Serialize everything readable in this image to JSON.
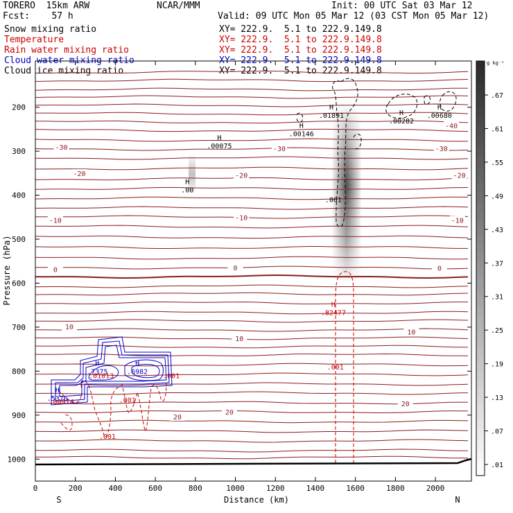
{
  "header": {
    "title": "TORERO  15km ARW",
    "org": "NCAR/MMM",
    "init": "Init: 00 UTC Sat 03 Mar 12",
    "fcst": "Fcst:    57 h",
    "valid": "Valid: 09 UTC Mon 05 Mar 12 (03 CST Mon 05 Mar 12)"
  },
  "fields": [
    {
      "name": "Snow mixing ratio",
      "xy": "XY= 222.9.  5.1 to 222.9.149.8",
      "color": "#000000"
    },
    {
      "name": "Temperature",
      "xy": "XY= 222.9.  5.1 to 222.9.149.8",
      "color": "#cc0000"
    },
    {
      "name": "Rain water mixing ratio",
      "xy": "XY= 222.9.  5.1 to 222.9.149.8",
      "color": "#cc0000"
    },
    {
      "name": "Cloud water mixing ratio",
      "xy": "XY= 222.9.  5.1 to 222.9.149.8",
      "color": "#0000cc"
    },
    {
      "name": "Cloud ice mixing ratio",
      "xy": "XY= 222.9.  5.1 to 222.9.149.8",
      "color": "#000000"
    }
  ],
  "chart_data": {
    "type": "contour cross-section",
    "xlabel": "Distance (km)",
    "ylabel": "Pressure (hPa)",
    "xlim": [
      0,
      2180
    ],
    "ylim": [
      1050,
      95
    ],
    "xticks": [
      "0",
      "200",
      "400",
      "600",
      "800",
      "1000",
      "1200",
      "1400",
      "1600",
      "1800",
      "2000"
    ],
    "yticks": [
      "200",
      "300",
      "400",
      "500",
      "600",
      "700",
      "800",
      "900",
      "1000"
    ],
    "x_end_labels": {
      "left": "S",
      "right": "N"
    },
    "colorbar": {
      "unit": "g kg⁻¹",
      "ticks": [
        ".01",
        ".07",
        ".13",
        ".19",
        ".25",
        ".31",
        ".37",
        ".43",
        ".49",
        ".55",
        ".61",
        ".67"
      ]
    },
    "temperature_labels": [
      {
        "text": "-40",
        "x": 2080,
        "p": 243
      },
      {
        "text": "-30",
        "x": 130,
        "p": 292
      },
      {
        "text": "-30",
        "x": 1220,
        "p": 295
      },
      {
        "text": "-30",
        "x": 2030,
        "p": 295
      },
      {
        "text": "-20",
        "x": 220,
        "p": 352
      },
      {
        "text": "-20",
        "x": 1030,
        "p": 356
      },
      {
        "text": "-20",
        "x": 2120,
        "p": 356
      },
      {
        "text": "-10",
        "x": 100,
        "p": 458
      },
      {
        "text": "-10",
        "x": 1030,
        "p": 452
      },
      {
        "text": "-10",
        "x": 2110,
        "p": 458
      },
      {
        "text": "0",
        "x": 100,
        "p": 570
      },
      {
        "text": "0",
        "x": 1000,
        "p": 566
      },
      {
        "text": "0",
        "x": 2020,
        "p": 567
      },
      {
        "text": "10",
        "x": 170,
        "p": 700
      },
      {
        "text": "10",
        "x": 1020,
        "p": 727
      },
      {
        "text": "10",
        "x": 1880,
        "p": 712
      },
      {
        "text": "20",
        "x": 710,
        "p": 905
      },
      {
        "text": "20",
        "x": 970,
        "p": 894
      },
      {
        "text": "20",
        "x": 1850,
        "p": 875
      }
    ],
    "maxima_labels": [
      {
        "letter": "H",
        "value": ".00075",
        "x": 920,
        "p": 275,
        "color": "#000000"
      },
      {
        "letter": "H",
        "value": ".00146",
        "x": 1330,
        "p": 247,
        "color": "#000000"
      },
      {
        "letter": "H",
        "value": ".01891",
        "x": 1480,
        "p": 205,
        "color": "#000000"
      },
      {
        "letter": "H",
        "value": ".00282",
        "x": 1830,
        "p": 218,
        "color": "#000000"
      },
      {
        "letter": "H",
        "value": ".00680",
        "x": 2020,
        "p": 205,
        "color": "#000000"
      },
      {
        "letter": "H",
        "value": ".00",
        "x": 760,
        "p": 375,
        "color": "#000000"
      },
      {
        "letter": "H",
        "value": ".82477",
        "x": 1490,
        "p": 654,
        "color": "#cc0000"
      },
      {
        "letter": "H",
        "value": ".7375",
        "x": 310,
        "p": 788,
        "color": "#0000cc"
      },
      {
        "letter": "H",
        "value": ".6982",
        "x": 510,
        "p": 788,
        "color": "#0000cc"
      },
      {
        "letter": "H",
        "value": ".5376",
        "x": 110,
        "p": 848,
        "color": "#0000cc"
      }
    ],
    "contour_value_labels": [
      {
        "text": ".001",
        "x": 1490,
        "p": 416,
        "color": "#000000"
      },
      {
        "text": ".001",
        "x": 1500,
        "p": 796,
        "color": "#cc0000"
      },
      {
        "text": ".00914",
        "x": 130,
        "p": 875,
        "color": "#cc0000"
      },
      {
        "text": ".001",
        "x": 360,
        "p": 954,
        "color": "#cc0000"
      },
      {
        "text": ".001",
        "x": 460,
        "p": 871,
        "color": "#cc0000"
      },
      {
        "text": ".01013",
        "x": 330,
        "p": 816,
        "color": "#cc0000"
      },
      {
        "text": ".001",
        "x": 680,
        "p": 816,
        "color": "#cc0000"
      }
    ]
  }
}
